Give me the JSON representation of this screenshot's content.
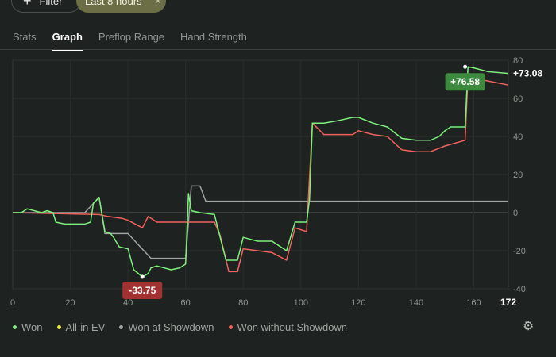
{
  "toolbar": {
    "filter_label": "Filter",
    "time_label": "Last 8 hours",
    "clear_symbol": "×"
  },
  "tabs": [
    {
      "label": "Stats"
    },
    {
      "label": "Graph"
    },
    {
      "label": "Preflop Range"
    },
    {
      "label": "Hand Strength"
    }
  ],
  "legend": [
    {
      "label": "Won",
      "color": "#7cf07a"
    },
    {
      "label": "All-in EV",
      "color": "#e6e84a"
    },
    {
      "label": "Won at Showdown",
      "color": "#a0a4a2"
    },
    {
      "label": "Won without Showdown",
      "color": "#f0625c"
    }
  ],
  "chart_data": {
    "type": "line",
    "xlim": [
      0,
      172
    ],
    "ylim": [
      -40,
      80
    ],
    "x_ticks": [
      "0",
      "20",
      "40",
      "60",
      "80",
      "100",
      "120",
      "140",
      "160"
    ],
    "x_max_label": "172",
    "y_ticks": [
      "80",
      "60",
      "40",
      "20",
      "0",
      "-20",
      "-40"
    ],
    "grid": true,
    "legend_position": "bottom-left",
    "series": [
      {
        "name": "Won",
        "color": "#7cf07a",
        "x": [
          0,
          3,
          5,
          10,
          12,
          14,
          15,
          18,
          25,
          27,
          28,
          30,
          32,
          34,
          35,
          37,
          40,
          42,
          45,
          47,
          48,
          50,
          55,
          58,
          60,
          61,
          62,
          65,
          70,
          72,
          74,
          75,
          78,
          80,
          85,
          90,
          95,
          98,
          100,
          102,
          103,
          104,
          108,
          112,
          118,
          120,
          125,
          130,
          135,
          140,
          145,
          148,
          150,
          152,
          157,
          158,
          160,
          165,
          172
        ],
        "y": [
          0,
          0,
          2,
          0,
          1,
          0,
          -5,
          -6,
          -6,
          -5,
          5,
          8,
          -10,
          -11,
          -13,
          -18,
          -19,
          -30,
          -33.75,
          -32,
          -29,
          -28,
          -30,
          -29,
          -27,
          10,
          1,
          0,
          -1,
          -13,
          -25,
          -25,
          -25,
          -13,
          -15,
          -15,
          -20,
          -5,
          -5,
          -5,
          7,
          47,
          47,
          48,
          50,
          50,
          47,
          45,
          39,
          38,
          38,
          40,
          43,
          45,
          45,
          76.58,
          76,
          74,
          73.08
        ]
      },
      {
        "name": "Won at Showdown",
        "color": "#a0a4a2",
        "x": [
          0,
          25,
          30,
          32,
          40,
          48,
          60,
          62,
          65,
          67,
          100,
          172
        ],
        "y": [
          0,
          0,
          8,
          -11,
          -11,
          -24,
          -24,
          14,
          14,
          6,
          6,
          6
        ]
      },
      {
        "name": "Won without Showdown",
        "color": "#f0625c",
        "x": [
          0,
          30,
          33,
          38,
          40,
          45,
          47,
          50,
          56,
          62,
          70,
          72,
          75,
          78,
          80,
          85,
          90,
          95,
          98,
          102,
          104,
          108,
          115,
          118,
          120,
          125,
          130,
          135,
          140,
          145,
          150,
          157,
          158,
          162,
          172
        ],
        "y": [
          0,
          -1,
          -2,
          -3,
          -4,
          -8,
          -2,
          -5,
          -5,
          -5,
          -5,
          -12,
          -31,
          -31,
          -19,
          -20,
          -21,
          -25,
          -8,
          -10,
          47,
          41,
          41,
          41,
          43,
          41,
          40,
          33,
          32,
          32,
          35,
          38,
          72,
          70,
          67
        ]
      }
    ],
    "annotations": [
      {
        "text": "+76.58",
        "x": 157,
        "y": 76.58,
        "color": "#3c8a3e"
      },
      {
        "text": "-33.75",
        "x": 45,
        "y": -33.75,
        "color": "#a23131"
      },
      {
        "text": "+73.08",
        "x": 172,
        "y": 73.08,
        "color": "#ffffff"
      }
    ]
  }
}
